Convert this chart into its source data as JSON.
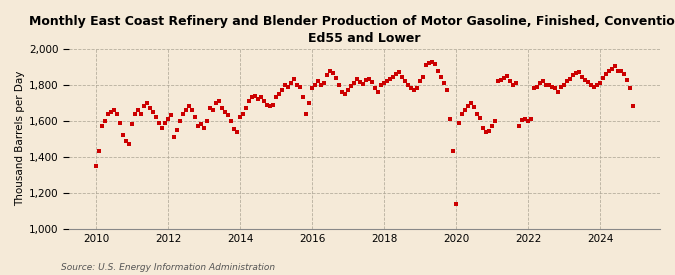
{
  "title": "Monthly East Coast Refinery and Blender Production of Motor Gasoline, Finished, Conventional,\nEd55 and Lower",
  "ylabel": "Thousand Barrels per Day",
  "source": "Source: U.S. Energy Information Administration",
  "background_color": "#f5ead8",
  "plot_bg_color": "#f5ead8",
  "marker_color": "#cc0000",
  "grid_color": "#b0a898",
  "ylim": [
    1000,
    2000
  ],
  "yticks": [
    1000,
    1200,
    1400,
    1600,
    1800,
    2000
  ],
  "ytick_labels": [
    "1,000",
    "1,200",
    "1,400",
    "1,600",
    "1,800",
    "2,000"
  ],
  "title_fontsize": 9.0,
  "ylabel_fontsize": 7.5,
  "tick_fontsize": 7.5,
  "source_fontsize": 6.5,
  "values": [
    1350,
    1430,
    1570,
    1600,
    1640,
    1650,
    1660,
    1640,
    1590,
    1520,
    1490,
    1470,
    1580,
    1640,
    1660,
    1640,
    1680,
    1700,
    1670,
    1650,
    1620,
    1590,
    1560,
    1590,
    1610,
    1635,
    1510,
    1550,
    1600,
    1640,
    1660,
    1680,
    1660,
    1620,
    1570,
    1580,
    1560,
    1600,
    1670,
    1660,
    1700,
    1710,
    1670,
    1650,
    1630,
    1600,
    1555,
    1540,
    1620,
    1640,
    1670,
    1710,
    1730,
    1740,
    1720,
    1730,
    1710,
    1690,
    1680,
    1690,
    1730,
    1750,
    1770,
    1800,
    1790,
    1810,
    1830,
    1800,
    1790,
    1730,
    1640,
    1700,
    1780,
    1800,
    1820,
    1800,
    1810,
    1855,
    1875,
    1865,
    1840,
    1800,
    1760,
    1750,
    1770,
    1795,
    1810,
    1830,
    1815,
    1805,
    1825,
    1835,
    1815,
    1780,
    1760,
    1800,
    1810,
    1820,
    1835,
    1845,
    1860,
    1870,
    1845,
    1820,
    1800,
    1780,
    1770,
    1780,
    1820,
    1845,
    1910,
    1920,
    1925,
    1915,
    1880,
    1845,
    1810,
    1770,
    1610,
    1430,
    1135,
    1590,
    1640,
    1660,
    1685,
    1700,
    1675,
    1640,
    1615,
    1560,
    1540,
    1545,
    1570,
    1600,
    1820,
    1825,
    1840,
    1850,
    1820,
    1800,
    1810,
    1570,
    1605,
    1610,
    1600,
    1610,
    1780,
    1790,
    1810,
    1820,
    1800,
    1800,
    1790,
    1785,
    1760,
    1790,
    1800,
    1820,
    1835,
    1855,
    1865,
    1870,
    1845,
    1825,
    1815,
    1800,
    1790,
    1800,
    1810,
    1840,
    1860,
    1880,
    1890,
    1905,
    1880,
    1875,
    1860,
    1825,
    1785,
    1685
  ],
  "start_year": 2010,
  "start_month": 1
}
